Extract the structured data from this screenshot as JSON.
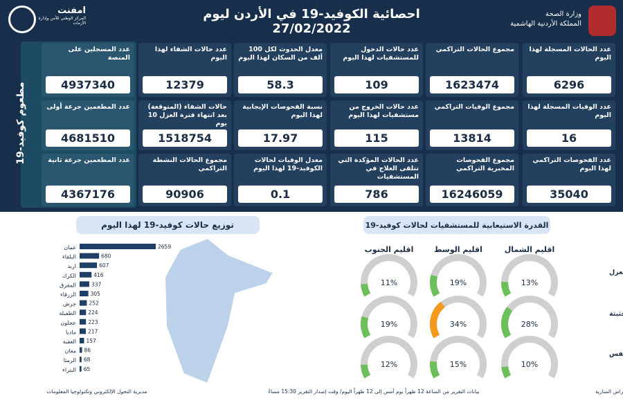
{
  "header": {
    "title": "احصائية الكوفيد-19 في الأردن ليوم",
    "date": "27/02/2022",
    "ministry": "وزارة الصحة",
    "kingdom": "المملكة الأردنية الهاشمية",
    "logo": "امفنت",
    "logo_sub": "المركز الوطني للأمن وإدارة الأزمات"
  },
  "stats": {
    "rows": [
      [
        {
          "label": "عدد الحالات المسجلة لهذا اليوم",
          "value": 6296
        },
        {
          "label": "مجموع الحالات التراكمي",
          "value": 1623474
        },
        {
          "label": "عدد حالات الدخول للمستشفيات لهذا اليوم",
          "value": 109
        },
        {
          "label": "معدل الحدوث لكل 100 ألف من السكان لهذا اليوم",
          "value": 58.3
        },
        {
          "label": "عدد حالات الشفاء لهذا اليوم",
          "value": 12379
        }
      ],
      [
        {
          "label": "عدد الوفيات المسجلة لهذا اليوم",
          "value": 16
        },
        {
          "label": "مجموع الوفيات التراكمي",
          "value": 13814
        },
        {
          "label": "عدد حالات الخروج من مستشفيات لهذا اليوم",
          "value": 115
        },
        {
          "label": "نسبة الفحوصات الإيجابية لهذا اليوم",
          "value": 17.97
        },
        {
          "label": "حالات الشفاء (المتوقعة) بعد انتهاء فترة العزل 10 يوم",
          "value": 1518754
        }
      ],
      [
        {
          "label": "عدد الفحوصات التراكمي لهذا اليوم",
          "value": 35040
        },
        {
          "label": "مجموع الفحوصات المخبرية التراكمي",
          "value": 16246059
        },
        {
          "label": "عدد الحالات المؤكدة التي تتلقى العلاج في المستشفيات",
          "value": 786
        },
        {
          "label": "معدل الوفيات لحالات الكوفيد-19 لهذا اليوم",
          "value": 0.1
        },
        {
          "label": "مجموع الحالات النشطة التراكمي",
          "value": 90906
        }
      ]
    ]
  },
  "vaccine": {
    "title": "مطعوم كوفيد-19",
    "cards": [
      {
        "label": "عدد المسجلين على المنصة",
        "value": 4937340
      },
      {
        "label": "عدد المطعمين جرعة أولى",
        "value": 4681510
      },
      {
        "label": "عدد المطعمين جرعة ثانية",
        "value": 4367176
      }
    ]
  },
  "distribution": {
    "title": "توزيع حالات كوفيد-19 لهذا اليوم",
    "color": "#1f3f66",
    "categories": [
      "عمان",
      "البلقاء",
      "اربد",
      "الكرك",
      "المفرق",
      "الزرقاء",
      "جرش",
      "الطفيلة",
      "عجلون",
      "مادبا",
      "العقبة",
      "معان",
      "الرمثا",
      "البتراء"
    ],
    "values": [
      2659,
      680,
      607,
      416,
      337,
      305,
      252,
      224,
      223,
      217,
      157,
      86,
      68,
      65
    ]
  },
  "capacity": {
    "title": "القدرة الاستيعابية للمستشفيات لحالات كوفيد-19",
    "regions": [
      "اقليم الشمال",
      "اقليم الوسط",
      "اقليم الجنوب"
    ],
    "rows": [
      {
        "label": "نسبة اشغال اسرة العزل",
        "values": [
          13,
          19,
          11
        ],
        "value_labels": [
          "13%",
          "19%",
          "11%"
        ],
        "colors": [
          "#6cbf5a",
          "#6cbf5a",
          "#6cbf5a"
        ]
      },
      {
        "label": "نسبة اشغال اسرة العناية الحثيثة",
        "values": [
          28,
          34,
          19
        ],
        "value_labels": [
          "28%",
          "34%",
          "19%"
        ],
        "colors": [
          "#6cbf5a",
          "#f39a1e",
          "#6cbf5a"
        ]
      },
      {
        "label": "نسبة اشغال اجهزة التنفس",
        "values": [
          10,
          15,
          12
        ],
        "value_labels": [
          "10%",
          "15%",
          "12%"
        ],
        "colors": [
          "#6cbf5a",
          "#6cbf5a",
          "#6cbf5a"
        ]
      }
    ]
  },
  "footer": {
    "right": "مديرية الأمراض السارية",
    "center": "بيانات التقرير من الساعة 12 ظهراً يوم أمس إلى 12 ظهراً اليوم/ وقت إصدار التقرير 15:30 مساءً",
    "left": "مديرية التحول الإلكتروني وتكنولوجيا المعلومات"
  }
}
